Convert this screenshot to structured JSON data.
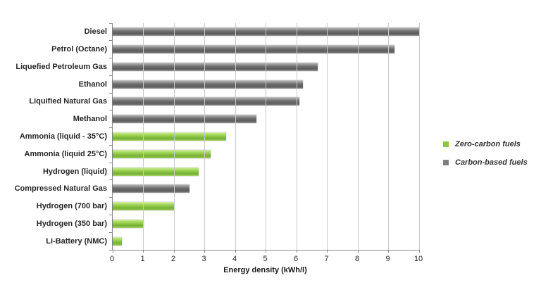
{
  "chart_data": {
    "type": "bar",
    "orientation": "horizontal",
    "title": "",
    "xlabel": "Energy density (kWh/l)",
    "ylabel": "",
    "xlim": [
      0,
      10
    ],
    "xticks": [
      0,
      1,
      2,
      3,
      4,
      5,
      6,
      7,
      8,
      9,
      10
    ],
    "grid": true,
    "bars": [
      {
        "category": "Diesel",
        "value": 10.1,
        "group": "carbon-based"
      },
      {
        "category": "Petrol (Octane)",
        "value": 9.2,
        "group": "carbon-based"
      },
      {
        "category": "Liquefied Petroleum Gas",
        "value": 6.7,
        "group": "carbon-based"
      },
      {
        "category": "Ethanol",
        "value": 6.2,
        "group": "carbon-based"
      },
      {
        "category": "Liquified Natural Gas",
        "value": 6.1,
        "group": "carbon-based"
      },
      {
        "category": "Methanol",
        "value": 4.7,
        "group": "carbon-based"
      },
      {
        "category": "Ammonia (liquid - 35°C)",
        "value": 3.7,
        "group": "zero-carbon"
      },
      {
        "category": "Ammonia (liquid 25°C)",
        "value": 3.2,
        "group": "zero-carbon"
      },
      {
        "category": "Hydrogen (liquid)",
        "value": 2.8,
        "group": "zero-carbon"
      },
      {
        "category": "Compressed Natural Gas",
        "value": 2.5,
        "group": "carbon-based"
      },
      {
        "category": "Hydrogen (700 bar)",
        "value": 2.0,
        "group": "zero-carbon"
      },
      {
        "category": "Hydrogen (350 bar)",
        "value": 1.0,
        "group": "zero-carbon"
      },
      {
        "category": "Li-Battery (NMC)",
        "value": 0.3,
        "group": "zero-carbon"
      }
    ],
    "legend": {
      "position": "right",
      "entries": [
        {
          "label": "Zero-carbon fuels",
          "group": "zero-carbon",
          "color": "#8CC63E"
        },
        {
          "label": "Carbon-based fuels",
          "group": "carbon-based",
          "color": "#7F7F7F"
        }
      ]
    },
    "colors": {
      "zero-carbon": "#8CC63E",
      "carbon-based": "#7F7F7F",
      "gridline": "#C9C9C9",
      "axis": "#898989"
    }
  }
}
